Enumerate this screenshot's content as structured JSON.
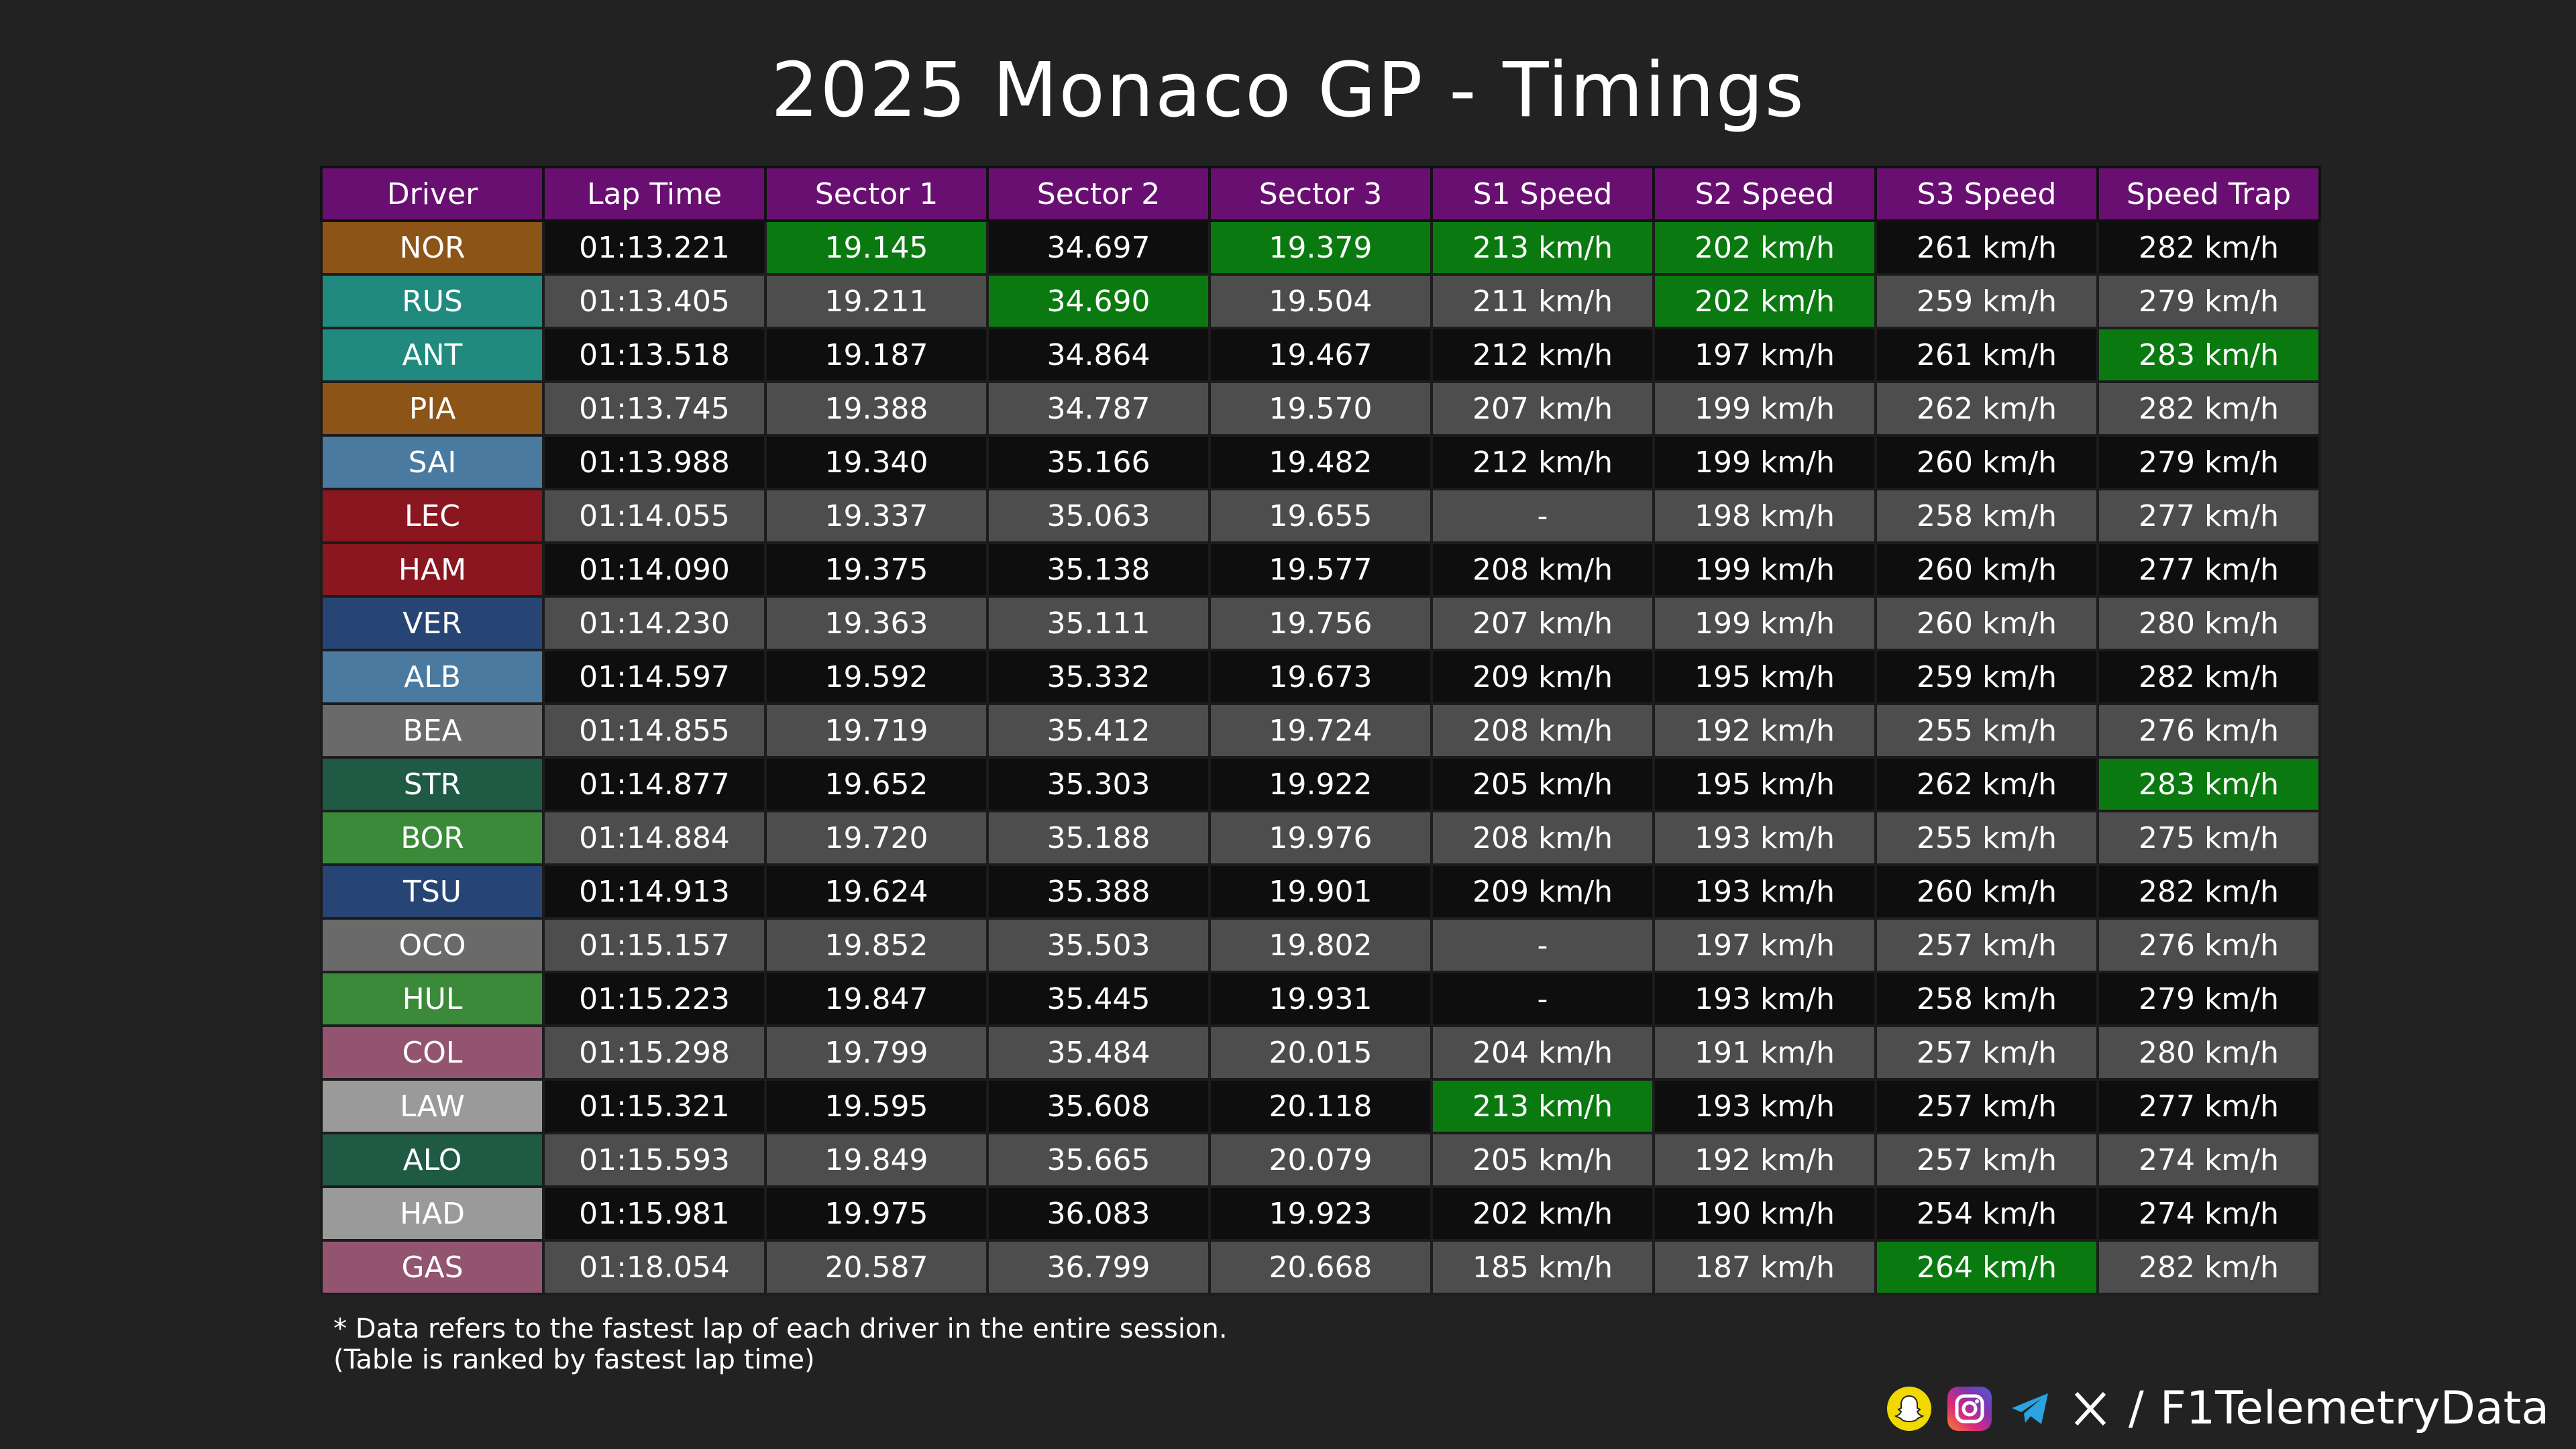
{
  "title": "2025 Monaco GP - Timings",
  "watermark": "@F1TelemetryData",
  "columns": [
    "Driver",
    "Lap Time",
    "Sector 1",
    "Sector 2",
    "Sector 3",
    "S1 Speed",
    "S2 Speed",
    "S3 Speed",
    "Speed Trap"
  ],
  "rows": [
    {
      "driver": "NOR",
      "color": "#8c5417",
      "lap": "01:13.221",
      "s1": "19.145",
      "s2": "34.697",
      "s3": "19.379",
      "sp1": "213 km/h",
      "sp2": "202 km/h",
      "sp3": "261 km/h",
      "trap": "282 km/h",
      "best": [
        "s1",
        "s3",
        "sp1",
        "sp2"
      ]
    },
    {
      "driver": "RUS",
      "color": "#1f8a7d",
      "lap": "01:13.405",
      "s1": "19.211",
      "s2": "34.690",
      "s3": "19.504",
      "sp1": "211 km/h",
      "sp2": "202 km/h",
      "sp3": "259 km/h",
      "trap": "279 km/h",
      "best": [
        "s2",
        "sp2"
      ]
    },
    {
      "driver": "ANT",
      "color": "#1f8a7d",
      "lap": "01:13.518",
      "s1": "19.187",
      "s2": "34.864",
      "s3": "19.467",
      "sp1": "212 km/h",
      "sp2": "197 km/h",
      "sp3": "261 km/h",
      "trap": "283 km/h",
      "best": [
        "trap"
      ]
    },
    {
      "driver": "PIA",
      "color": "#8c5417",
      "lap": "01:13.745",
      "s1": "19.388",
      "s2": "34.787",
      "s3": "19.570",
      "sp1": "207 km/h",
      "sp2": "199 km/h",
      "sp3": "262 km/h",
      "trap": "282 km/h",
      "best": []
    },
    {
      "driver": "SAI",
      "color": "#4a7aa0",
      "lap": "01:13.988",
      "s1": "19.340",
      "s2": "35.166",
      "s3": "19.482",
      "sp1": "212 km/h",
      "sp2": "199 km/h",
      "sp3": "260 km/h",
      "trap": "279 km/h",
      "best": []
    },
    {
      "driver": "LEC",
      "color": "#8a1620",
      "lap": "01:14.055",
      "s1": "19.337",
      "s2": "35.063",
      "s3": "19.655",
      "sp1": "-",
      "sp2": "198 km/h",
      "sp3": "258 km/h",
      "trap": "277 km/h",
      "best": []
    },
    {
      "driver": "HAM",
      "color": "#8a1620",
      "lap": "01:14.090",
      "s1": "19.375",
      "s2": "35.138",
      "s3": "19.577",
      "sp1": "208 km/h",
      "sp2": "199 km/h",
      "sp3": "260 km/h",
      "trap": "277 km/h",
      "best": []
    },
    {
      "driver": "VER",
      "color": "#264575",
      "lap": "01:14.230",
      "s1": "19.363",
      "s2": "35.111",
      "s3": "19.756",
      "sp1": "207 km/h",
      "sp2": "199 km/h",
      "sp3": "260 km/h",
      "trap": "280 km/h",
      "best": []
    },
    {
      "driver": "ALB",
      "color": "#4a7aa0",
      "lap": "01:14.597",
      "s1": "19.592",
      "s2": "35.332",
      "s3": "19.673",
      "sp1": "209 km/h",
      "sp2": "195 km/h",
      "sp3": "259 km/h",
      "trap": "282 km/h",
      "best": []
    },
    {
      "driver": "BEA",
      "color": "#6a6a6a",
      "lap": "01:14.855",
      "s1": "19.719",
      "s2": "35.412",
      "s3": "19.724",
      "sp1": "208 km/h",
      "sp2": "192 km/h",
      "sp3": "255 km/h",
      "trap": "276 km/h",
      "best": []
    },
    {
      "driver": "STR",
      "color": "#1f5a44",
      "lap": "01:14.877",
      "s1": "19.652",
      "s2": "35.303",
      "s3": "19.922",
      "sp1": "205 km/h",
      "sp2": "195 km/h",
      "sp3": "262 km/h",
      "trap": "283 km/h",
      "best": [
        "trap"
      ]
    },
    {
      "driver": "BOR",
      "color": "#3a8a3a",
      "lap": "01:14.884",
      "s1": "19.720",
      "s2": "35.188",
      "s3": "19.976",
      "sp1": "208 km/h",
      "sp2": "193 km/h",
      "sp3": "255 km/h",
      "trap": "275 km/h",
      "best": []
    },
    {
      "driver": "TSU",
      "color": "#264575",
      "lap": "01:14.913",
      "s1": "19.624",
      "s2": "35.388",
      "s3": "19.901",
      "sp1": "209 km/h",
      "sp2": "193 km/h",
      "sp3": "260 km/h",
      "trap": "282 km/h",
      "best": []
    },
    {
      "driver": "OCO",
      "color": "#6a6a6a",
      "lap": "01:15.157",
      "s1": "19.852",
      "s2": "35.503",
      "s3": "19.802",
      "sp1": "-",
      "sp2": "197 km/h",
      "sp3": "257 km/h",
      "trap": "276 km/h",
      "best": []
    },
    {
      "driver": "HUL",
      "color": "#3a8a3a",
      "lap": "01:15.223",
      "s1": "19.847",
      "s2": "35.445",
      "s3": "19.931",
      "sp1": "-",
      "sp2": "193 km/h",
      "sp3": "258 km/h",
      "trap": "279 km/h",
      "best": []
    },
    {
      "driver": "COL",
      "color": "#93546f",
      "lap": "01:15.298",
      "s1": "19.799",
      "s2": "35.484",
      "s3": "20.015",
      "sp1": "204 km/h",
      "sp2": "191 km/h",
      "sp3": "257 km/h",
      "trap": "280 km/h",
      "best": []
    },
    {
      "driver": "LAW",
      "color": "#9a9a9a",
      "lap": "01:15.321",
      "s1": "19.595",
      "s2": "35.608",
      "s3": "20.118",
      "sp1": "213 km/h",
      "sp2": "193 km/h",
      "sp3": "257 km/h",
      "trap": "277 km/h",
      "best": [
        "sp1"
      ]
    },
    {
      "driver": "ALO",
      "color": "#1f5a44",
      "lap": "01:15.593",
      "s1": "19.849",
      "s2": "35.665",
      "s3": "20.079",
      "sp1": "205 km/h",
      "sp2": "192 km/h",
      "sp3": "257 km/h",
      "trap": "274 km/h",
      "best": []
    },
    {
      "driver": "HAD",
      "color": "#9a9a9a",
      "lap": "01:15.981",
      "s1": "19.975",
      "s2": "36.083",
      "s3": "19.923",
      "sp1": "202 km/h",
      "sp2": "190 km/h",
      "sp3": "254 km/h",
      "trap": "274 km/h",
      "best": []
    },
    {
      "driver": "GAS",
      "color": "#93546f",
      "lap": "01:18.054",
      "s1": "20.587",
      "s2": "36.799",
      "s3": "20.668",
      "sp1": "185 km/h",
      "sp2": "187 km/h",
      "sp3": "264 km/h",
      "trap": "282 km/h",
      "best": [
        "sp3"
      ]
    }
  ],
  "footnote_line1": "* Data refers to the fastest lap of each driver in the entire session.",
  "footnote_line2": "(Table is ranked by fastest lap time)",
  "footer": {
    "icons": [
      "snapchat-icon",
      "instagram-icon",
      "telegram-icon",
      "x-icon"
    ],
    "separator": "/",
    "handle": "F1TelemetryData"
  },
  "colors": {
    "header_bg": "#6a0f72",
    "best_bg": "#0a7a10",
    "row_dark": "#0e0e0e",
    "row_light": "#4d4d4d",
    "page_bg": "#222222"
  }
}
